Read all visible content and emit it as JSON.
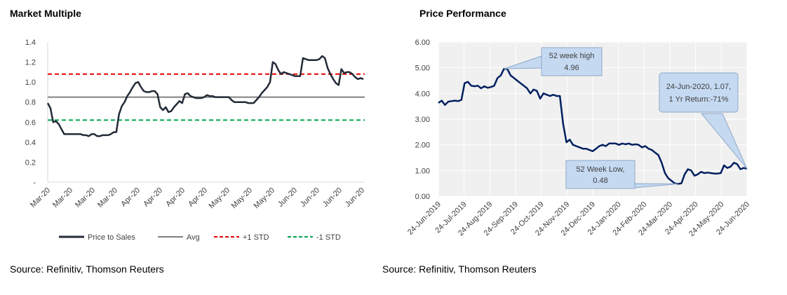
{
  "panels": {
    "left_title": "Market Multiple",
    "right_title": "Price Performance",
    "left_source": "Source: Refinitiv, Thomson Reuters",
    "right_source": "Source: Refinitiv, Thomson Reuters"
  },
  "chart_data": [
    {
      "type": "line",
      "title": "Market Multiple",
      "ylim": [
        0,
        1.4
      ],
      "yticks": [
        "-",
        "0.2",
        "0.4",
        "0.6",
        "0.8",
        "1.0",
        "1.2",
        "1.4"
      ],
      "xtick_labels": [
        "Mar-20",
        "Mar-20",
        "Mar-20",
        "Mar-20",
        "Apr-20",
        "Apr-20",
        "Apr-20",
        "Apr-20",
        "May-20",
        "May-20",
        "May-20",
        "Jun-20",
        "Jun-20",
        "Jun-20",
        "Jun-20"
      ],
      "grid": false,
      "legend_position": "bottom",
      "colors": {
        "price_to_sales": "#232b38",
        "avg": "#808080",
        "plus_std": "#e60000",
        "minus_std": "#00a651"
      },
      "series": [
        {
          "name": "Price to Sales",
          "values": [
            0.79,
            0.74,
            0.6,
            0.61,
            0.58,
            0.53,
            0.48,
            0.48,
            0.48,
            0.48,
            0.48,
            0.48,
            0.48,
            0.47,
            0.47,
            0.46,
            0.48,
            0.48,
            0.46,
            0.46,
            0.47,
            0.47,
            0.47,
            0.48,
            0.5,
            0.5,
            0.68,
            0.76,
            0.8,
            0.86,
            0.9,
            0.95,
            0.99,
            1.0,
            0.95,
            0.91,
            0.9,
            0.9,
            0.91,
            0.91,
            0.88,
            0.75,
            0.72,
            0.75,
            0.7,
            0.71,
            0.75,
            0.78,
            0.81,
            0.79,
            0.88,
            0.89,
            0.86,
            0.85,
            0.84,
            0.84,
            0.84,
            0.85,
            0.87,
            0.86,
            0.86,
            0.85,
            0.85,
            0.85,
            0.85,
            0.85,
            0.85,
            0.82,
            0.8,
            0.8,
            0.8,
            0.8,
            0.8,
            0.79,
            0.79,
            0.79,
            0.82,
            0.85,
            0.89,
            0.92,
            0.95,
            1.0,
            1.2,
            1.18,
            1.12,
            1.08,
            1.1,
            1.09,
            1.08,
            1.07,
            1.06,
            1.06,
            1.06,
            1.24,
            1.23,
            1.22,
            1.22,
            1.22,
            1.22,
            1.23,
            1.26,
            1.24,
            1.14,
            1.08,
            1.03,
            0.99,
            0.97,
            1.13,
            1.09,
            1.1,
            1.1,
            1.08,
            1.05,
            1.03,
            1.04,
            1.03
          ]
        },
        {
          "name": "Avg",
          "value": 0.85
        },
        {
          "name": "+1 STD",
          "value": 1.08
        },
        {
          "name": "-1 STD",
          "value": 0.62
        }
      ]
    },
    {
      "type": "line",
      "title": "Price Performance",
      "ylim": [
        0,
        6
      ],
      "yticks": [
        "0.00",
        "1.00",
        "2.00",
        "3.00",
        "4.00",
        "5.00",
        "6.00"
      ],
      "xtick_labels": [
        "24-Jun-2019",
        "24-Jul-2019",
        "24-Aug-2019",
        "24-Sep-2019",
        "24-Oct-2019",
        "24-Nov-2019",
        "24-Dec-2019",
        "24-Jan-2020",
        "24-Feb-2020",
        "24-Mar-2020",
        "24-Apr-2020",
        "24-May-2020",
        "24-Jun-2020"
      ],
      "grid": true,
      "colors": {
        "price": "#002060",
        "callout_fill": "#c5d9f1",
        "callout_border": "#8ea9c8"
      },
      "series": [
        {
          "values": [
            3.63,
            3.72,
            3.55,
            3.68,
            3.7,
            3.72,
            3.7,
            3.75,
            4.4,
            4.45,
            4.3,
            4.28,
            4.3,
            4.2,
            4.28,
            4.22,
            4.25,
            4.3,
            4.6,
            4.7,
            4.96,
            4.95,
            4.7,
            4.6,
            4.5,
            4.4,
            4.3,
            4.2,
            4.0,
            4.15,
            4.1,
            3.8,
            4.0,
            3.95,
            3.9,
            3.95,
            3.9,
            3.9,
            2.8,
            2.1,
            2.2,
            2.0,
            1.95,
            1.9,
            1.85,
            1.85,
            1.8,
            1.75,
            1.85,
            1.95,
            2.0,
            1.95,
            2.05,
            2.05,
            2.05,
            2.0,
            2.05,
            2.02,
            2.05,
            2.0,
            2.02,
            2.0,
            1.9,
            1.95,
            1.85,
            1.8,
            1.7,
            1.6,
            1.3,
            0.9,
            0.7,
            0.6,
            0.5,
            0.48,
            0.5,
            0.85,
            1.05,
            1.0,
            0.8,
            0.85,
            0.95,
            0.9,
            0.92,
            0.9,
            0.88,
            0.88,
            0.9,
            1.2,
            1.1,
            1.15,
            1.3,
            1.25,
            1.05,
            1.1,
            1.07
          ]
        }
      ],
      "annotations": {
        "high": {
          "line1": "52 week high",
          "line2": "4.96"
        },
        "low": {
          "line1": "52 Week Low,",
          "line2": "0.48"
        },
        "last": {
          "line1": "24-Jun-2020, 1.07,",
          "line2": "1 Yr Return:-71%"
        }
      }
    }
  ]
}
